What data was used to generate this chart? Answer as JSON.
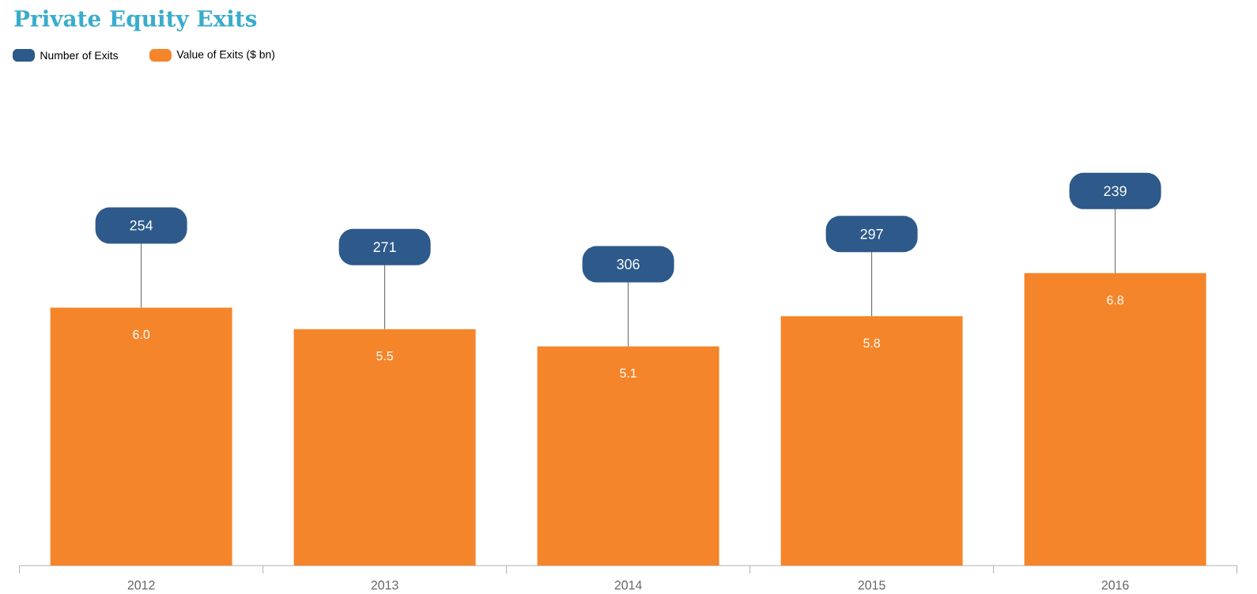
{
  "chart_data": {
    "type": "bar",
    "title": "Private Equity Exits",
    "categories": [
      "2012",
      "2013",
      "2014",
      "2015",
      "2016"
    ],
    "series": [
      {
        "name": "Number of Exits",
        "type": "other",
        "color": "#2d5a8a",
        "values": [
          null,
          null,
          null,
          null,
          null
        ]
      },
      {
        "name": "Value of Exits ($ bn)",
        "color": "#f5852a",
        "values": [
          6.0,
          5.5,
          5.1,
          5.8,
          6.8
        ],
        "value_labels": [
          "6.0",
          "5.5",
          "5.1",
          "5.8",
          "6.8"
        ]
      }
    ],
    "annotations": [
      {
        "text": "254",
        "x": "2012",
        "y": 6.0
      },
      {
        "text": "271",
        "x": "2013",
        "y": 5.5
      },
      {
        "text": "306",
        "x": "2014",
        "y": 5.1
      },
      {
        "text": "297",
        "x": "2015",
        "y": 5.8
      },
      {
        "text": "239",
        "x": "2016",
        "y": 6.8
      }
    ],
    "ylim": [
      0,
      9
    ],
    "legend": "top left"
  }
}
